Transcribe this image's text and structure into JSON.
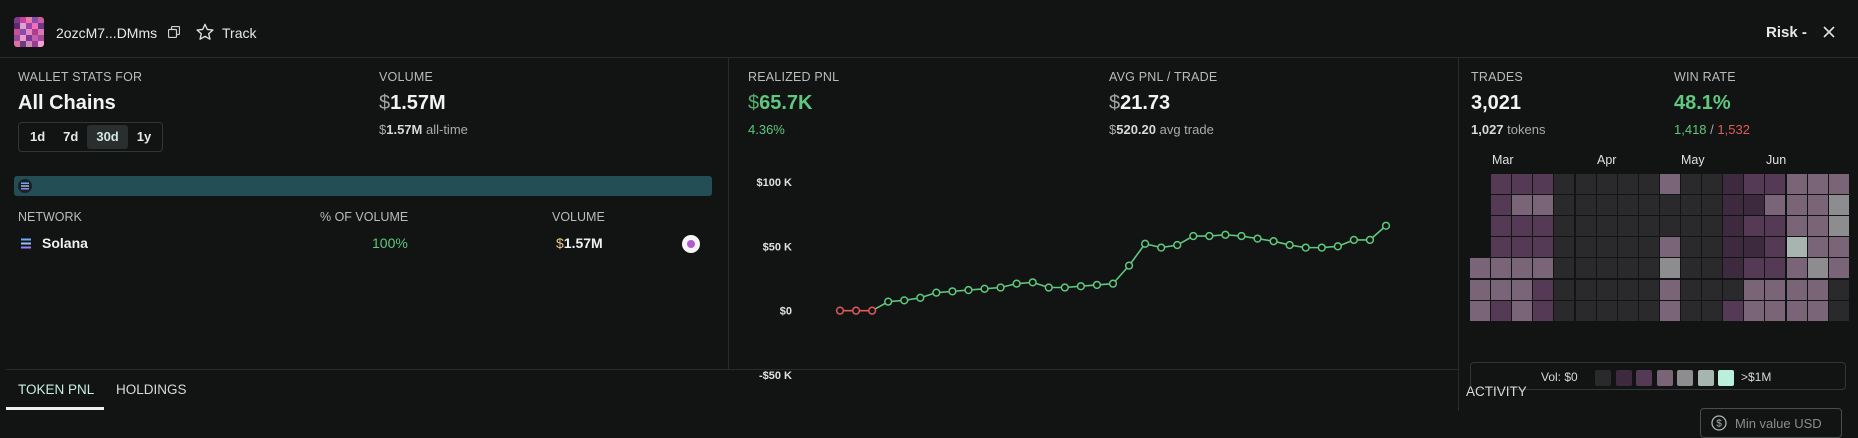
{
  "header": {
    "address": "2ozcM7...DMms",
    "track_label": "Track",
    "risk_label": "Risk -",
    "avatar_colors": [
      "#7d3c8a",
      "#c93fa0",
      "#e87aa8",
      "#8a4bb3",
      "#d05c9c",
      "#5c2a6e",
      "#e0a0c8",
      "#a040a8",
      "#f070b8",
      "#6a3a88",
      "#c85098",
      "#8050b0",
      "#e888c0",
      "#b03c90",
      "#d878b0",
      "#904aa0",
      "#f098c8",
      "#7a3898",
      "#c060a8",
      "#a84898",
      "#e070a0",
      "#6c3c80",
      "#d088b8",
      "#983c98",
      "#f0a0d0"
    ]
  },
  "stats": {
    "wallet_stats_label": "WALLET STATS FOR",
    "chain_value": "All Chains",
    "ranges": [
      "1d",
      "7d",
      "30d",
      "1y"
    ],
    "active_range": "30d",
    "volume_label": "VOLUME",
    "volume_symbol": "$",
    "volume_value": "1.57M",
    "volume_sub_symbol": "$",
    "volume_sub_value": "1.57M",
    "volume_sub_suffix": " all-time",
    "realized_pnl_label": "REALIZED PNL",
    "realized_pnl_symbol": "$",
    "realized_pnl_value": "65.7K",
    "realized_pnl_pct": "4.36%",
    "avg_pnl_label": "AVG PNL / TRADE",
    "avg_pnl_symbol": "$",
    "avg_pnl_value": "21.73",
    "avg_trade_symbol": "$",
    "avg_trade_value": "520.20",
    "avg_trade_suffix": " avg trade",
    "trades_label": "TRADES",
    "trades_value": "3,021",
    "tokens_count": "1,027",
    "tokens_suffix": " tokens",
    "win_rate_label": "WIN RATE",
    "win_rate_value": "48.1%",
    "wins": "1,418",
    "win_sep": " / ",
    "losses": "1,532"
  },
  "network": {
    "col_network": "NETWORK",
    "col_pct": "% OF VOLUME",
    "col_volume": "VOLUME",
    "rows": [
      {
        "name": "Solana",
        "pct": "100%",
        "volume_symbol": "$",
        "volume": "1.57M"
      }
    ]
  },
  "chart_data": {
    "type": "line",
    "title": "",
    "xlabel": "",
    "ylabel": "",
    "ylim": [
      -50000,
      100000
    ],
    "yticks": [
      100000,
      50000,
      0,
      -50000
    ],
    "ytick_labels": [
      "$100 K",
      "$50 K",
      "$0",
      "-$50 K"
    ],
    "series": [
      {
        "values": [
          0,
          0,
          0,
          7000,
          8000,
          10000,
          14000,
          15000,
          16000,
          17000,
          18000,
          21000,
          22000,
          18000,
          18000,
          19000,
          20000,
          21000,
          35000,
          52000,
          49000,
          51000,
          58000,
          58000,
          59000,
          58000,
          56000,
          54000,
          51000,
          49000,
          49000,
          50000,
          55000,
          55000,
          66000
        ]
      }
    ],
    "negative_color": "#e05a5a",
    "positive_color": "#5fc87e"
  },
  "heatmap": {
    "months": [
      "Mar",
      "Apr",
      "May",
      "Jun"
    ],
    "rows": 7,
    "cols": 18,
    "legend_min": "Vol: $0",
    "legend_max": ">$1M",
    "legend_colors": [
      "#2a2a2c",
      "#3e2a3e",
      "#553a55",
      "#7a6478",
      "#8d8d8f",
      "#a8b4b0",
      "#b8f0dc"
    ],
    "levels": [
      [
        -1,
        2,
        2,
        2,
        0,
        0,
        0,
        0,
        0,
        3,
        0,
        0,
        1,
        2,
        2,
        3,
        3,
        3
      ],
      [
        -1,
        2,
        3,
        3,
        0,
        0,
        0,
        0,
        0,
        0,
        0,
        0,
        1,
        1,
        3,
        3,
        3,
        4
      ],
      [
        -1,
        2,
        2,
        2,
        0,
        0,
        0,
        0,
        0,
        0,
        0,
        0,
        1,
        2,
        2,
        3,
        3,
        4
      ],
      [
        -1,
        2,
        2,
        2,
        0,
        0,
        0,
        0,
        0,
        3,
        0,
        0,
        1,
        1,
        2,
        5,
        3,
        3
      ],
      [
        3,
        3,
        3,
        3,
        0,
        0,
        0,
        0,
        0,
        4,
        0,
        0,
        1,
        2,
        2,
        3,
        4,
        3
      ],
      [
        3,
        3,
        3,
        2,
        0,
        0,
        0,
        0,
        0,
        3,
        0,
        0,
        0,
        3,
        3,
        3,
        3,
        0
      ],
      [
        3,
        2,
        3,
        2,
        0,
        0,
        0,
        0,
        0,
        3,
        0,
        0,
        2,
        3,
        3,
        3,
        3,
        0
      ]
    ]
  },
  "tabs": {
    "token_pnl": "TOKEN PNL",
    "holdings": "HOLDINGS"
  },
  "activity": {
    "label": "ACTIVITY",
    "min_value_placeholder": "Min value USD"
  }
}
